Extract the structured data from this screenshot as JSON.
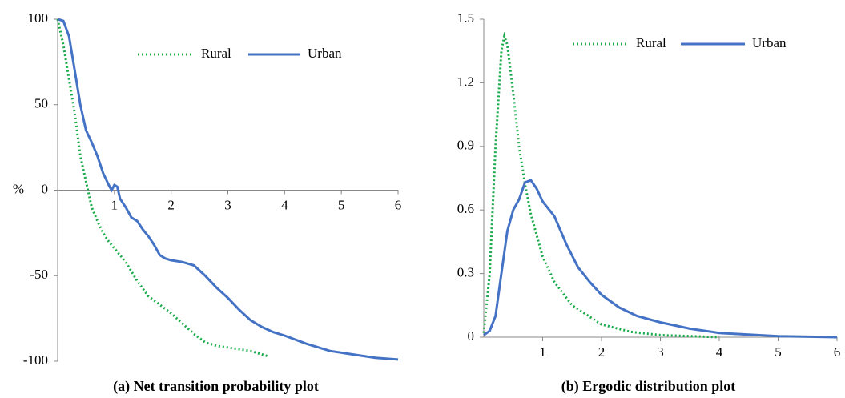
{
  "chart_data": [
    {
      "type": "line",
      "title": "(a) Net transition probability plot",
      "ylabel": "%",
      "xlim": [
        0,
        6
      ],
      "xticks": [
        1,
        2,
        3,
        4,
        5,
        6
      ],
      "ylim": [
        -100,
        100
      ],
      "yticks": [
        -100,
        -50,
        0,
        50,
        100
      ],
      "grid": false,
      "legend": "upper right",
      "series": [
        {
          "name": "Rural",
          "color": "#1aab4b",
          "style": "dotted",
          "x": [
            0,
            0.1,
            0.2,
            0.3,
            0.4,
            0.5,
            0.6,
            0.7,
            0.8,
            0.9,
            1.0,
            1.2,
            1.4,
            1.6,
            1.8,
            2.0,
            2.2,
            2.4,
            2.6,
            2.8,
            3.0,
            3.4,
            3.7
          ],
          "values": [
            100,
            85,
            65,
            45,
            20,
            5,
            -10,
            -18,
            -25,
            -30,
            -34,
            -42,
            -53,
            -62,
            -67,
            -72,
            -78,
            -84,
            -89,
            -91,
            -92,
            -94,
            -97
          ]
        },
        {
          "name": "Urban",
          "color": "#4472c4",
          "style": "solid",
          "x": [
            0,
            0.1,
            0.2,
            0.3,
            0.4,
            0.5,
            0.6,
            0.7,
            0.8,
            0.9,
            0.95,
            1.0,
            1.05,
            1.1,
            1.2,
            1.3,
            1.4,
            1.5,
            1.6,
            1.7,
            1.8,
            1.9,
            2.0,
            2.2,
            2.4,
            2.6,
            2.8,
            3.0,
            3.2,
            3.4,
            3.6,
            3.8,
            4.0,
            4.4,
            4.8,
            5.2,
            5.6,
            6.0
          ],
          "values": [
            100,
            99,
            90,
            70,
            50,
            35,
            28,
            20,
            10,
            3,
            0,
            3,
            2,
            -5,
            -10,
            -16,
            -18,
            -23,
            -27,
            -32,
            -38,
            -40,
            -41,
            -42,
            -44,
            -50,
            -57,
            -63,
            -70,
            -76,
            -80,
            -83,
            -85,
            -90,
            -94,
            -96,
            -98,
            -99
          ]
        }
      ]
    },
    {
      "type": "line",
      "title": "(b) Ergodic distribution plot",
      "xlim": [
        0,
        6
      ],
      "xticks": [
        1,
        2,
        3,
        4,
        5,
        6
      ],
      "ylim": [
        0,
        1.5
      ],
      "yticks": [
        0,
        0.3,
        0.6,
        0.9,
        1.2,
        1.5
      ],
      "grid": false,
      "legend": "upper right",
      "series": [
        {
          "name": "Rural",
          "color": "#1aab4b",
          "style": "dotted",
          "x": [
            0,
            0.1,
            0.2,
            0.3,
            0.35,
            0.4,
            0.5,
            0.6,
            0.7,
            0.8,
            1.0,
            1.2,
            1.5,
            2.0,
            2.5,
            3.0,
            4.0
          ],
          "values": [
            0.02,
            0.3,
            0.9,
            1.35,
            1.42,
            1.38,
            1.15,
            0.9,
            0.72,
            0.58,
            0.38,
            0.26,
            0.15,
            0.06,
            0.025,
            0.01,
            0
          ]
        },
        {
          "name": "Urban",
          "color": "#4472c4",
          "style": "solid",
          "x": [
            0,
            0.1,
            0.2,
            0.3,
            0.4,
            0.5,
            0.6,
            0.7,
            0.8,
            0.9,
            1.0,
            1.2,
            1.4,
            1.6,
            1.8,
            2.0,
            2.3,
            2.6,
            3.0,
            3.5,
            4.0,
            5.0,
            6.0
          ],
          "values": [
            0.01,
            0.03,
            0.1,
            0.3,
            0.5,
            0.6,
            0.65,
            0.73,
            0.74,
            0.7,
            0.64,
            0.57,
            0.44,
            0.33,
            0.26,
            0.2,
            0.14,
            0.1,
            0.07,
            0.04,
            0.02,
            0.005,
            0
          ]
        }
      ]
    }
  ]
}
